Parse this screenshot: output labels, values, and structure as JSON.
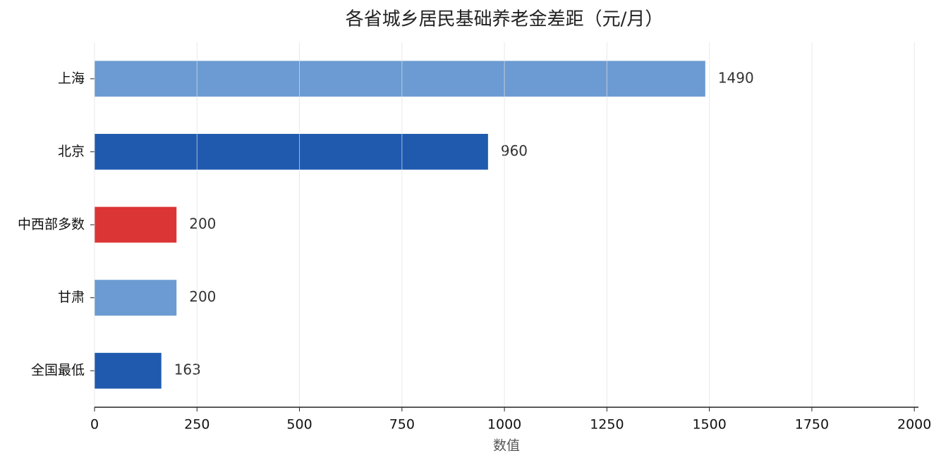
{
  "chart_data": {
    "type": "barh",
    "title": "各省城乡居民基础养老金差距（元/月）",
    "categories": [
      "上海",
      "北京",
      "中西部多数",
      "甘肃",
      "全国最低"
    ],
    "values": [
      1490,
      960,
      200,
      200,
      163
    ],
    "colors": [
      "#6b9bd2",
      "#1f5aaf",
      "#dc3535",
      "#6b9bd2",
      "#1f5aaf"
    ],
    "x_label": "数值",
    "xlim": [
      0,
      2010
    ],
    "xticks": [
      0,
      250,
      500,
      750,
      1000,
      1250,
      1500,
      1750,
      2000
    ],
    "grid": true
  }
}
